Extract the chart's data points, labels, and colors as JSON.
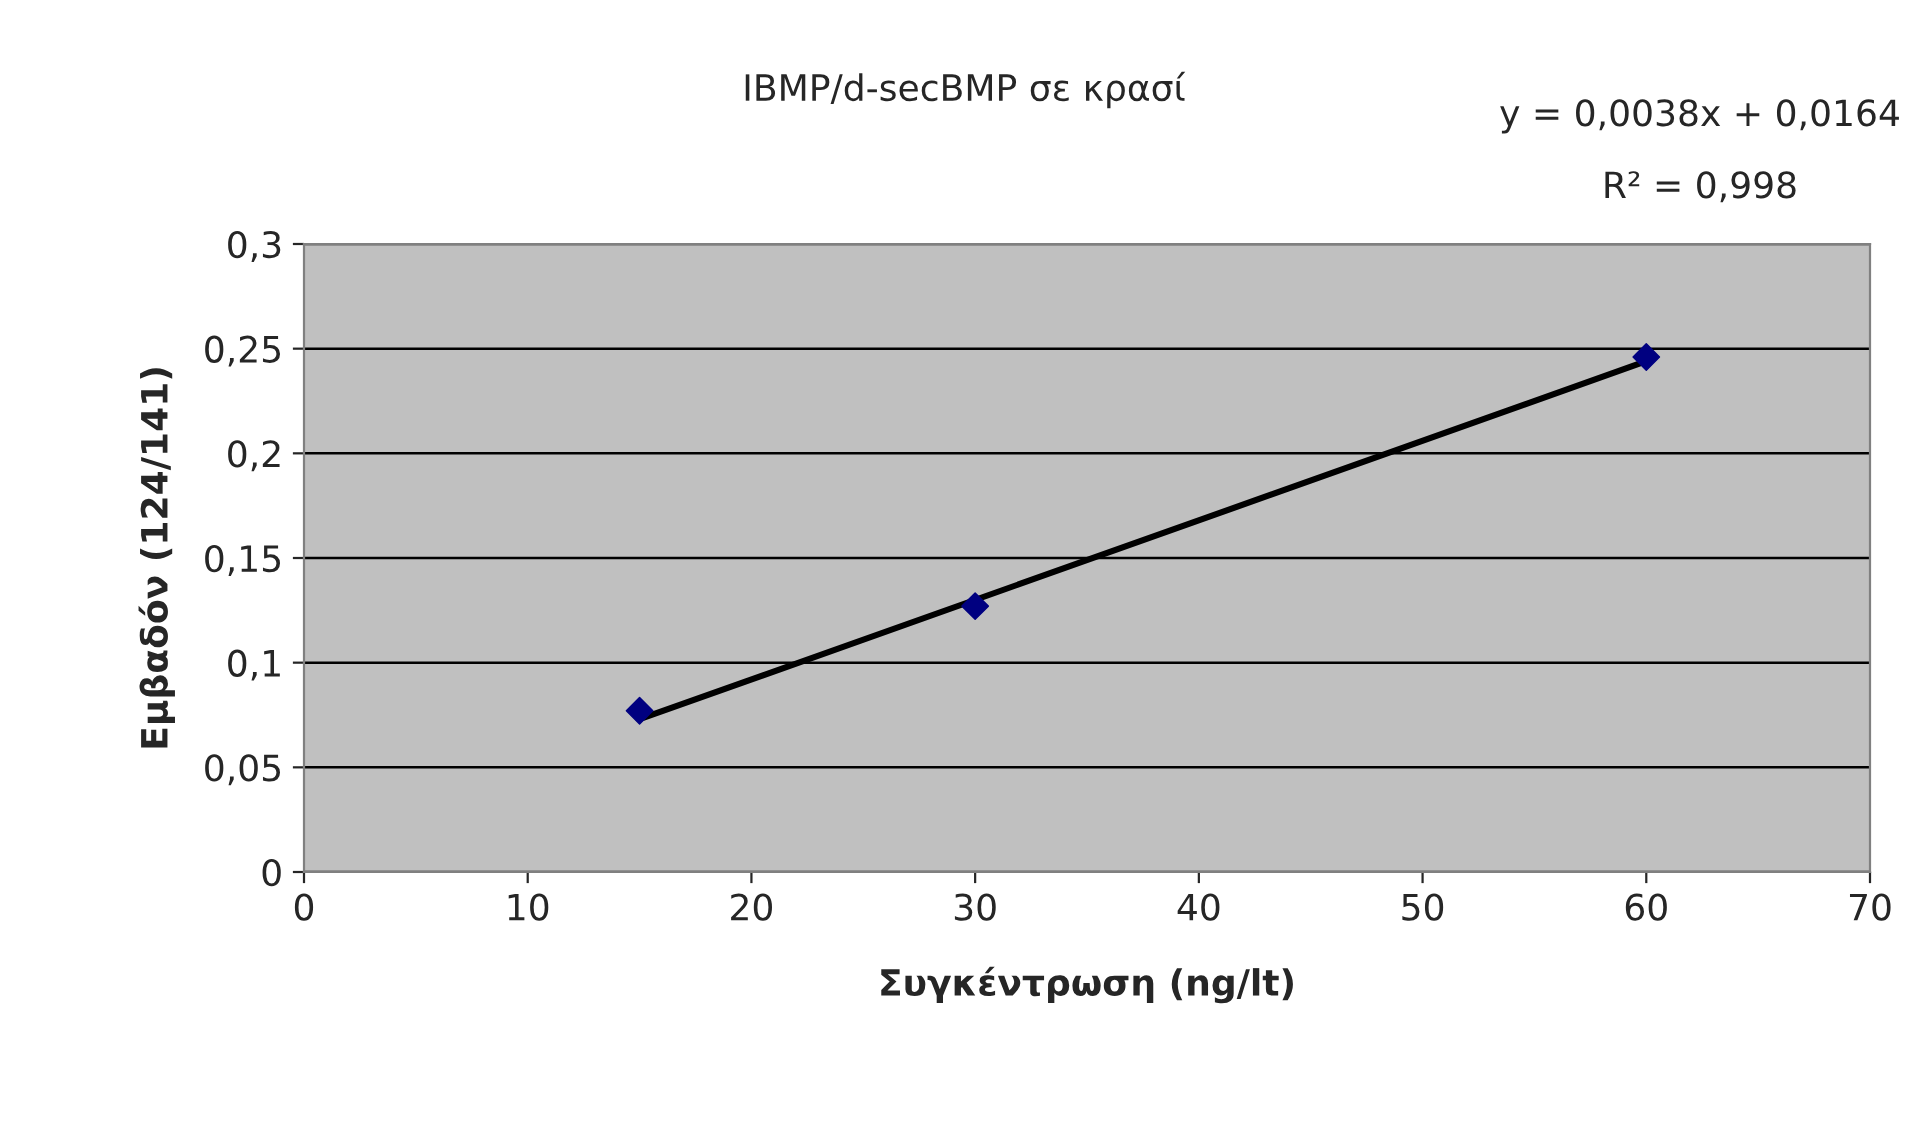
{
  "chart_data": {
    "type": "scatter",
    "title": "IBMP/d-secBMP σε κρασί",
    "xlabel": "Συγκέντρωση (ng/lt)",
    "ylabel": "Εμβαδόν (124/141)",
    "annotations": [
      "y = 0,0038x + 0,0164",
      "R² = 0,998"
    ],
    "series": [
      {
        "color": "#000080",
        "x": [
          15,
          30,
          60
        ],
        "values": [
          0.077,
          0.127,
          0.246
        ],
        "marker": "diamond"
      },
      {
        "type": "line",
        "color": "#000000",
        "x": [
          15,
          60
        ],
        "values": [
          0.073,
          0.244
        ],
        "marker": "none",
        "line_style": "solid"
      }
    ],
    "xlim": [
      0,
      70
    ],
    "xticks": [
      0,
      10,
      20,
      30,
      40,
      50,
      60,
      70
    ],
    "ylim": [
      0,
      0.3
    ],
    "yticks": [
      {
        "value": 0,
        "label": "0"
      },
      {
        "value": 0.05,
        "label": "0,05"
      },
      {
        "value": 0.1,
        "label": "0,1"
      },
      {
        "value": 0.15,
        "label": "0,15"
      },
      {
        "value": 0.2,
        "label": "0,2"
      },
      {
        "value": 0.25,
        "label": "0,25"
      },
      {
        "value": 0.3,
        "label": "0,3"
      }
    ],
    "grid": "y",
    "legend": false
  }
}
